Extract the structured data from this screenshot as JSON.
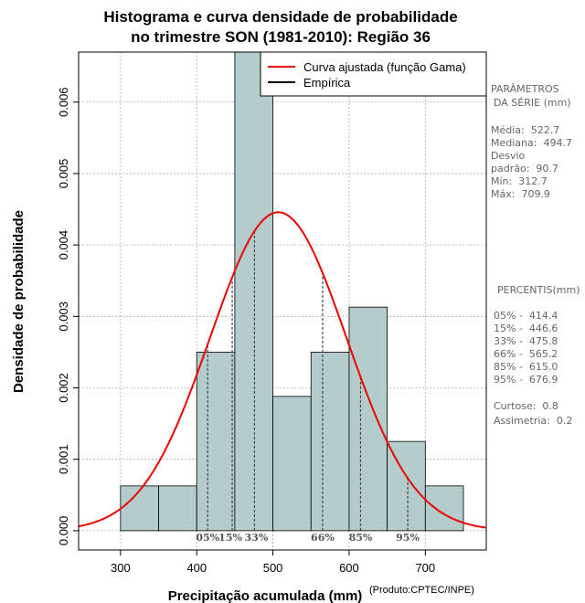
{
  "chart_data": {
    "type": "histogram",
    "title_line1": "Histograma e curva densidade de probabilidade",
    "title_line2": "no trimestre SON (1981-2010): Região 36",
    "xlabel": "Precipitação acumulada (mm)",
    "ylabel": "Densidade de probabilidade",
    "xlim": [
      245,
      780
    ],
    "ylim": [
      -0.00027,
      0.0067
    ],
    "x_ticks": [
      300,
      400,
      500,
      600,
      700
    ],
    "y_ticks": [
      0.0,
      0.001,
      0.002,
      0.003,
      0.004,
      0.005,
      0.006
    ],
    "y_tick_labels": [
      "0.000",
      "0.001",
      "0.002",
      "0.003",
      "0.004",
      "0.005",
      "0.006"
    ],
    "bins": [
      {
        "start": 300,
        "end": 350,
        "density": 0.000627
      },
      {
        "start": 350,
        "end": 400,
        "density": 0.000627
      },
      {
        "start": 400,
        "end": 450,
        "density": 0.0025
      },
      {
        "start": 450,
        "end": 500,
        "density": 0.0067
      },
      {
        "start": 500,
        "end": 550,
        "density": 0.00188
      },
      {
        "start": 550,
        "end": 600,
        "density": 0.0025
      },
      {
        "start": 600,
        "end": 650,
        "density": 0.00313
      },
      {
        "start": 650,
        "end": 700,
        "density": 0.00125
      },
      {
        "start": 700,
        "end": 750,
        "density": 0.000627
      }
    ],
    "bar_color": "#b4cccc",
    "curve_color": "#ee0000",
    "curve": {
      "distribution": "gamma",
      "mean": 507,
      "sd": 89.5
    },
    "percentile_lines": [
      {
        "label": "05%",
        "value": 414.4
      },
      {
        "label": "15%",
        "value": 446.6
      },
      {
        "label": "33%",
        "value": 475.8
      },
      {
        "label": "66%",
        "value": 565.2
      },
      {
        "label": "85%",
        "value": 615.0
      },
      {
        "label": "95%",
        "value": 676.9
      }
    ],
    "legend": {
      "position": "top-right",
      "entries": [
        {
          "label": "Curva ajustada (função Gama)",
          "color": "#ee0000"
        },
        {
          "label": "Empírica",
          "color": "#000000"
        }
      ]
    },
    "grid": true
  },
  "side_panel": {
    "params_title_1": "PARÂMETROS",
    "params_title_2": "DA SÉRIE (mm)",
    "media": "Média:  522.7",
    "mediana": "Mediana:  494.7",
    "desvio_1": "Desvio",
    "desvio_2": "padrão:  90.7",
    "min": "Mín:  312.7",
    "max": "Máx:  709.9",
    "percentis_title": "PERCENTIS(mm)",
    "p05": "05% -  414.4",
    "p15": "15% -  446.6",
    "p33": "33% -  475.8",
    "p66": "66% -  565.2",
    "p85": "85% -  615.0",
    "p95": "95% -  676.9",
    "curtose": "Curtose:  0.8",
    "assimetria": "Assimetria:  0.2"
  },
  "credit": "(Produto:CPTEC/INPE)"
}
